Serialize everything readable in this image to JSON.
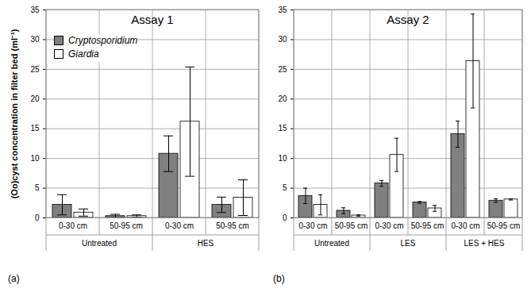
{
  "chart_data": [
    {
      "type": "bar",
      "title": "Assay 1",
      "caption": "(a)",
      "ylabel": "(Oo)cyst concentration in filter bed (ml⁻¹)",
      "categories": [
        "0-30 cm",
        "50-95 cm",
        "0-30 cm",
        "50-95 cm"
      ],
      "category_groups": [
        "Untreated",
        "Untreated",
        "HES",
        "HES"
      ],
      "series": [
        {
          "name": "Cryptosporidium",
          "color": "#808080",
          "values": [
            2.2,
            0.3,
            10.8,
            2.2
          ],
          "errors": [
            1.7,
            0.3,
            3.0,
            1.3
          ]
        },
        {
          "name": "Giardia",
          "color": "#ffffff",
          "values": [
            0.9,
            0.3,
            16.2,
            3.4
          ],
          "errors": [
            0.6,
            0.2,
            9.2,
            3.0
          ]
        }
      ],
      "ylim": [
        0,
        35
      ],
      "yticks": [
        0,
        5,
        10,
        15,
        20,
        25,
        30,
        35
      ],
      "grid": true,
      "legend": "top-left"
    },
    {
      "type": "bar",
      "title": "Assay 2",
      "caption": "(b)",
      "categories": [
        "0-30 cm",
        "50-95 cm",
        "0-30 cm",
        "50-95 cm",
        "0-30 cm",
        "50-95 cm"
      ],
      "category_groups": [
        "Untreated",
        "Untreated",
        "LES",
        "LES",
        "LES + HES",
        "LES + HES"
      ],
      "series": [
        {
          "name": "Cryptosporidium",
          "color": "#808080",
          "values": [
            3.7,
            1.2,
            5.8,
            2.6,
            14.1,
            2.9
          ],
          "errors": [
            1.3,
            0.5,
            0.5,
            0.15,
            2.2,
            0.3
          ]
        },
        {
          "name": "Giardia",
          "color": "#ffffff",
          "values": [
            2.2,
            0.4,
            10.6,
            1.6,
            26.4,
            3.1
          ],
          "errors": [
            1.7,
            0.1,
            2.8,
            0.5,
            7.9,
            0.1
          ]
        }
      ],
      "ylim": [
        0,
        35
      ],
      "yticks": [
        0,
        5,
        10,
        15,
        20,
        25,
        30,
        35
      ],
      "grid": true
    }
  ]
}
